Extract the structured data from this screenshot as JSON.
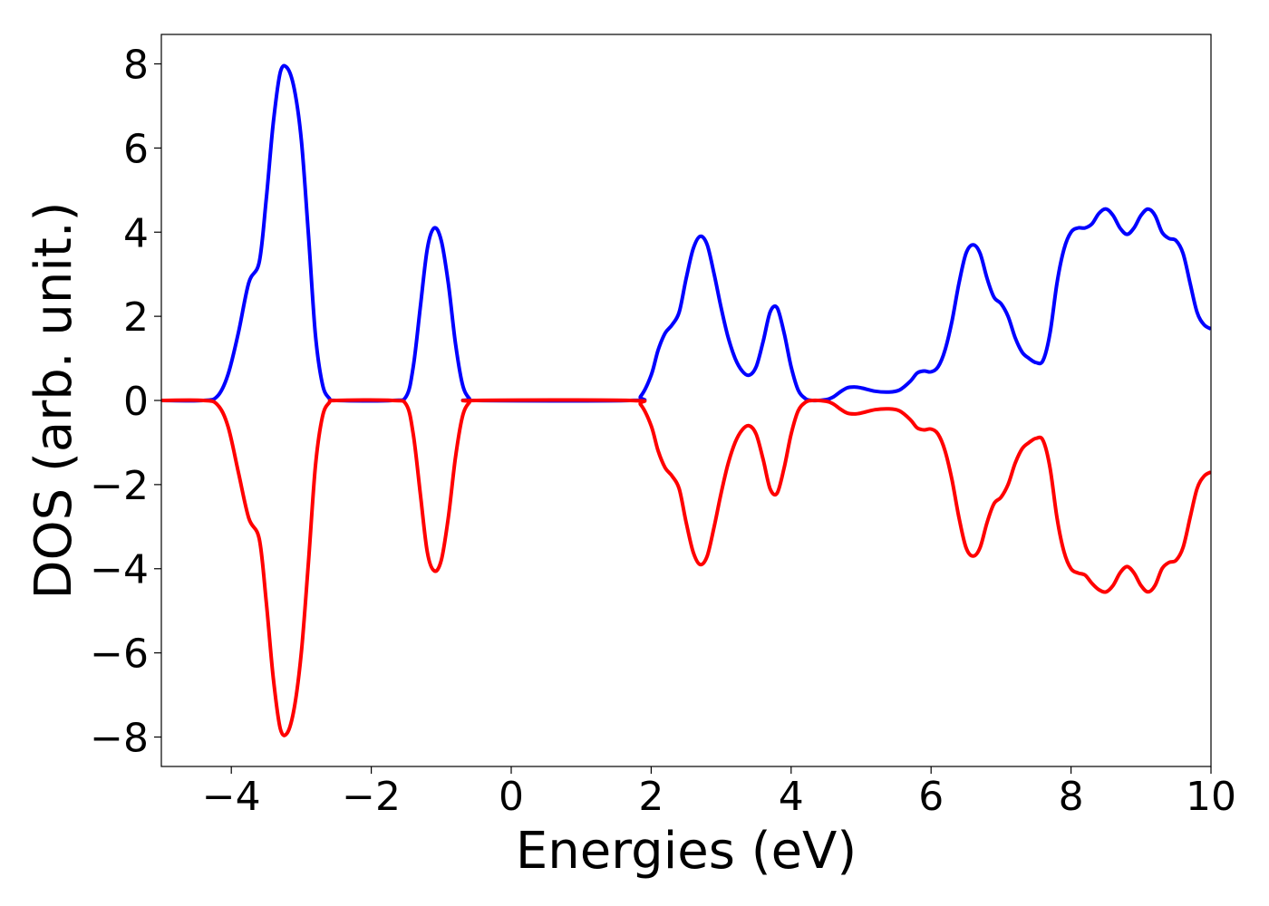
{
  "chart_data": {
    "type": "line",
    "title": "",
    "xlabel": "Energies (eV)",
    "ylabel": "DOS (arb. unit.)",
    "xlim": [
      -5,
      10
    ],
    "ylim": [
      -8.7,
      8.7
    ],
    "xticks": [
      -4,
      -2,
      0,
      2,
      4,
      6,
      8,
      10
    ],
    "xtick_labels": [
      "−4",
      "−2",
      "0",
      "2",
      "4",
      "6",
      "8",
      "10"
    ],
    "yticks": [
      -8,
      -6,
      -4,
      -2,
      0,
      2,
      4,
      6,
      8
    ],
    "ytick_labels": [
      "−8",
      "−6",
      "−4",
      "−2",
      "0",
      "2",
      "4",
      "6",
      "8"
    ],
    "grid": false,
    "legend": "none",
    "series": [
      {
        "color": "#0000ff",
        "points": [
          [
            -5.0,
            0
          ],
          [
            -4.4,
            0
          ],
          [
            -4.2,
            0.1
          ],
          [
            -4.05,
            0.6
          ],
          [
            -3.9,
            1.6
          ],
          [
            -3.75,
            2.8
          ],
          [
            -3.6,
            3.3
          ],
          [
            -3.5,
            4.8
          ],
          [
            -3.4,
            6.6
          ],
          [
            -3.3,
            7.8
          ],
          [
            -3.2,
            7.9
          ],
          [
            -3.1,
            7.4
          ],
          [
            -3.0,
            6.2
          ],
          [
            -2.9,
            4.0
          ],
          [
            -2.8,
            1.6
          ],
          [
            -2.7,
            0.4
          ],
          [
            -2.6,
            0.05
          ],
          [
            -2.5,
            0
          ],
          [
            -1.7,
            0
          ],
          [
            -1.5,
            0.1
          ],
          [
            -1.4,
            0.8
          ],
          [
            -1.3,
            2.2
          ],
          [
            -1.2,
            3.6
          ],
          [
            -1.1,
            4.1
          ],
          [
            -1.0,
            3.8
          ],
          [
            -0.9,
            2.8
          ],
          [
            -0.8,
            1.4
          ],
          [
            -0.7,
            0.4
          ],
          [
            -0.6,
            0.05
          ],
          [
            -0.5,
            0
          ],
          [
            1.7,
            0
          ],
          [
            1.85,
            0.1
          ],
          [
            2.0,
            0.6
          ],
          [
            2.1,
            1.2
          ],
          [
            2.2,
            1.6
          ],
          [
            2.3,
            1.8
          ],
          [
            2.4,
            2.1
          ],
          [
            2.5,
            2.9
          ],
          [
            2.6,
            3.6
          ],
          [
            2.7,
            3.9
          ],
          [
            2.8,
            3.7
          ],
          [
            2.9,
            3.0
          ],
          [
            3.0,
            2.2
          ],
          [
            3.1,
            1.5
          ],
          [
            3.2,
            1.0
          ],
          [
            3.3,
            0.7
          ],
          [
            3.4,
            0.6
          ],
          [
            3.5,
            0.8
          ],
          [
            3.6,
            1.4
          ],
          [
            3.7,
            2.1
          ],
          [
            3.8,
            2.2
          ],
          [
            3.9,
            1.6
          ],
          [
            4.0,
            0.8
          ],
          [
            4.1,
            0.25
          ],
          [
            4.2,
            0.05
          ],
          [
            4.3,
            0
          ],
          [
            4.5,
            0.02
          ],
          [
            4.6,
            0.08
          ],
          [
            4.7,
            0.2
          ],
          [
            4.8,
            0.3
          ],
          [
            4.9,
            0.32
          ],
          [
            5.0,
            0.3
          ],
          [
            5.2,
            0.22
          ],
          [
            5.4,
            0.2
          ],
          [
            5.55,
            0.25
          ],
          [
            5.7,
            0.45
          ],
          [
            5.8,
            0.65
          ],
          [
            5.9,
            0.7
          ],
          [
            6.0,
            0.68
          ],
          [
            6.1,
            0.8
          ],
          [
            6.2,
            1.2
          ],
          [
            6.3,
            1.9
          ],
          [
            6.4,
            2.8
          ],
          [
            6.5,
            3.5
          ],
          [
            6.6,
            3.7
          ],
          [
            6.7,
            3.5
          ],
          [
            6.8,
            2.9
          ],
          [
            6.9,
            2.45
          ],
          [
            7.0,
            2.3
          ],
          [
            7.1,
            2.0
          ],
          [
            7.2,
            1.5
          ],
          [
            7.3,
            1.15
          ],
          [
            7.4,
            1.0
          ],
          [
            7.5,
            0.9
          ],
          [
            7.6,
            0.95
          ],
          [
            7.7,
            1.6
          ],
          [
            7.8,
            2.8
          ],
          [
            7.9,
            3.6
          ],
          [
            8.0,
            4.0
          ],
          [
            8.1,
            4.1
          ],
          [
            8.2,
            4.1
          ],
          [
            8.3,
            4.2
          ],
          [
            8.4,
            4.45
          ],
          [
            8.5,
            4.55
          ],
          [
            8.6,
            4.4
          ],
          [
            8.7,
            4.1
          ],
          [
            8.8,
            3.95
          ],
          [
            8.9,
            4.1
          ],
          [
            9.0,
            4.4
          ],
          [
            9.1,
            4.55
          ],
          [
            9.2,
            4.4
          ],
          [
            9.3,
            4.0
          ],
          [
            9.4,
            3.85
          ],
          [
            9.5,
            3.8
          ],
          [
            9.6,
            3.5
          ],
          [
            9.7,
            2.8
          ],
          [
            9.8,
            2.1
          ],
          [
            9.9,
            1.8
          ],
          [
            10.0,
            1.7
          ]
        ]
      },
      {
        "color": "#ff0000",
        "points": [
          [
            -5.0,
            0
          ],
          [
            -4.4,
            0
          ],
          [
            -4.2,
            -0.1
          ],
          [
            -4.05,
            -0.6
          ],
          [
            -3.9,
            -1.7
          ],
          [
            -3.75,
            -2.8
          ],
          [
            -3.6,
            -3.3
          ],
          [
            -3.5,
            -4.8
          ],
          [
            -3.4,
            -6.6
          ],
          [
            -3.3,
            -7.8
          ],
          [
            -3.2,
            -7.9
          ],
          [
            -3.1,
            -7.3
          ],
          [
            -3.0,
            -6.0
          ],
          [
            -2.9,
            -3.9
          ],
          [
            -2.8,
            -1.6
          ],
          [
            -2.7,
            -0.4
          ],
          [
            -2.6,
            -0.05
          ],
          [
            -2.5,
            0
          ],
          [
            -1.7,
            0
          ],
          [
            -1.5,
            -0.1
          ],
          [
            -1.4,
            -0.8
          ],
          [
            -1.3,
            -2.2
          ],
          [
            -1.2,
            -3.6
          ],
          [
            -1.1,
            -4.05
          ],
          [
            -1.0,
            -3.8
          ],
          [
            -0.9,
            -2.8
          ],
          [
            -0.8,
            -1.4
          ],
          [
            -0.7,
            -0.4
          ],
          [
            -0.6,
            -0.05
          ],
          [
            -0.5,
            0
          ],
          [
            1.7,
            0
          ],
          [
            1.85,
            -0.1
          ],
          [
            2.0,
            -0.6
          ],
          [
            2.1,
            -1.2
          ],
          [
            2.2,
            -1.6
          ],
          [
            2.3,
            -1.8
          ],
          [
            2.4,
            -2.1
          ],
          [
            2.5,
            -2.9
          ],
          [
            2.6,
            -3.6
          ],
          [
            2.7,
            -3.9
          ],
          [
            2.8,
            -3.7
          ],
          [
            2.9,
            -3.0
          ],
          [
            3.0,
            -2.2
          ],
          [
            3.1,
            -1.5
          ],
          [
            3.2,
            -1.0
          ],
          [
            3.3,
            -0.7
          ],
          [
            3.4,
            -0.6
          ],
          [
            3.5,
            -0.8
          ],
          [
            3.6,
            -1.4
          ],
          [
            3.7,
            -2.1
          ],
          [
            3.8,
            -2.2
          ],
          [
            3.9,
            -1.6
          ],
          [
            4.0,
            -0.8
          ],
          [
            4.1,
            -0.25
          ],
          [
            4.2,
            -0.05
          ],
          [
            4.3,
            0
          ],
          [
            4.5,
            -0.02
          ],
          [
            4.6,
            -0.08
          ],
          [
            4.7,
            -0.2
          ],
          [
            4.8,
            -0.3
          ],
          [
            4.9,
            -0.32
          ],
          [
            5.0,
            -0.3
          ],
          [
            5.2,
            -0.22
          ],
          [
            5.4,
            -0.2
          ],
          [
            5.55,
            -0.25
          ],
          [
            5.7,
            -0.45
          ],
          [
            5.8,
            -0.65
          ],
          [
            5.9,
            -0.7
          ],
          [
            6.0,
            -0.68
          ],
          [
            6.1,
            -0.8
          ],
          [
            6.2,
            -1.2
          ],
          [
            6.3,
            -1.9
          ],
          [
            6.4,
            -2.8
          ],
          [
            6.5,
            -3.5
          ],
          [
            6.6,
            -3.7
          ],
          [
            6.7,
            -3.5
          ],
          [
            6.8,
            -2.9
          ],
          [
            6.9,
            -2.45
          ],
          [
            7.0,
            -2.3
          ],
          [
            7.1,
            -2.0
          ],
          [
            7.2,
            -1.5
          ],
          [
            7.3,
            -1.15
          ],
          [
            7.4,
            -1.0
          ],
          [
            7.5,
            -0.9
          ],
          [
            7.6,
            -0.95
          ],
          [
            7.7,
            -1.6
          ],
          [
            7.8,
            -2.8
          ],
          [
            7.9,
            -3.6
          ],
          [
            8.0,
            -4.0
          ],
          [
            8.1,
            -4.1
          ],
          [
            8.2,
            -4.15
          ],
          [
            8.3,
            -4.35
          ],
          [
            8.4,
            -4.5
          ],
          [
            8.5,
            -4.55
          ],
          [
            8.6,
            -4.4
          ],
          [
            8.7,
            -4.1
          ],
          [
            8.8,
            -3.95
          ],
          [
            8.9,
            -4.1
          ],
          [
            9.0,
            -4.4
          ],
          [
            9.1,
            -4.55
          ],
          [
            9.2,
            -4.4
          ],
          [
            9.3,
            -4.0
          ],
          [
            9.4,
            -3.85
          ],
          [
            9.5,
            -3.8
          ],
          [
            9.6,
            -3.5
          ],
          [
            9.7,
            -2.8
          ],
          [
            9.8,
            -2.1
          ],
          [
            9.9,
            -1.8
          ],
          [
            10.0,
            -1.7
          ]
        ]
      }
    ]
  }
}
